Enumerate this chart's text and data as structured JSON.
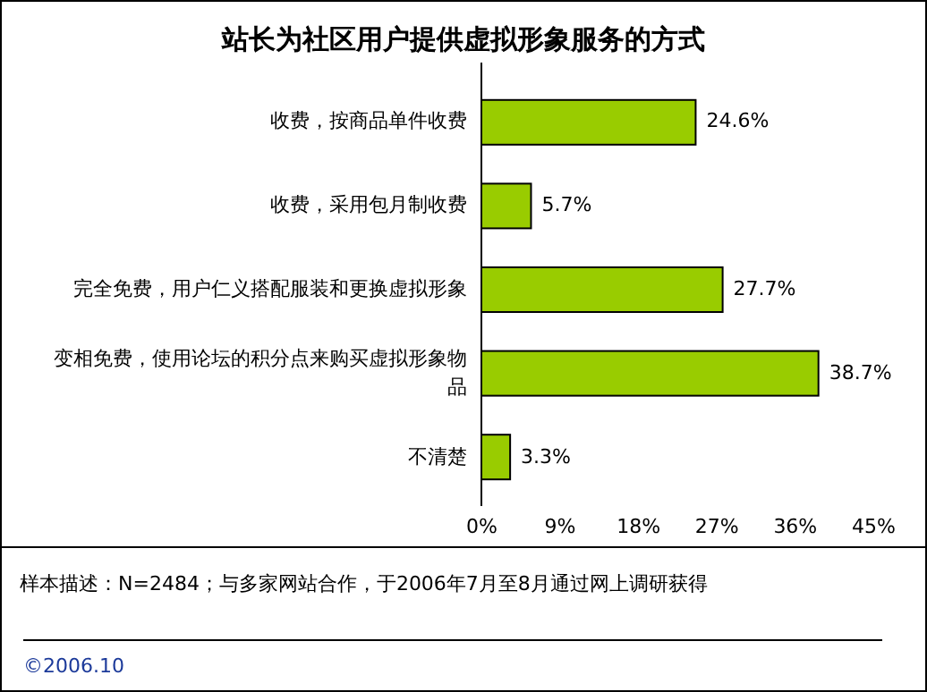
{
  "chart_data": {
    "type": "bar",
    "orientation": "horizontal",
    "title": "站长为社区用户提供虚拟形象服务的方式",
    "categories": [
      "收费，按商品单件收费",
      "收费，采用包月制收费",
      "完全免费，用户仁义搭配服装和更换虚拟形象",
      "变相免费，使用论坛的积分点来购买虚拟形象物品",
      "不清楚"
    ],
    "values": [
      24.6,
      5.7,
      27.7,
      38.7,
      3.3
    ],
    "value_labels": [
      "24.6%",
      "5.7%",
      "27.7%",
      "38.7%",
      "3.3%"
    ],
    "color": "#99cc00",
    "xlim": [
      0,
      45
    ],
    "xticks": [
      {
        "value": 0,
        "label": "0%"
      },
      {
        "value": 9,
        "label": "9%"
      },
      {
        "value": 18,
        "label": "18%"
      },
      {
        "value": 27,
        "label": "27%"
      },
      {
        "value": 36,
        "label": "36%"
      },
      {
        "value": 45,
        "label": "45%"
      }
    ],
    "annotations": [
      "样本描述：N=2484；与多家网站合作，于2006年7月至8月通过网上调研获得",
      "©2006.10"
    ]
  }
}
